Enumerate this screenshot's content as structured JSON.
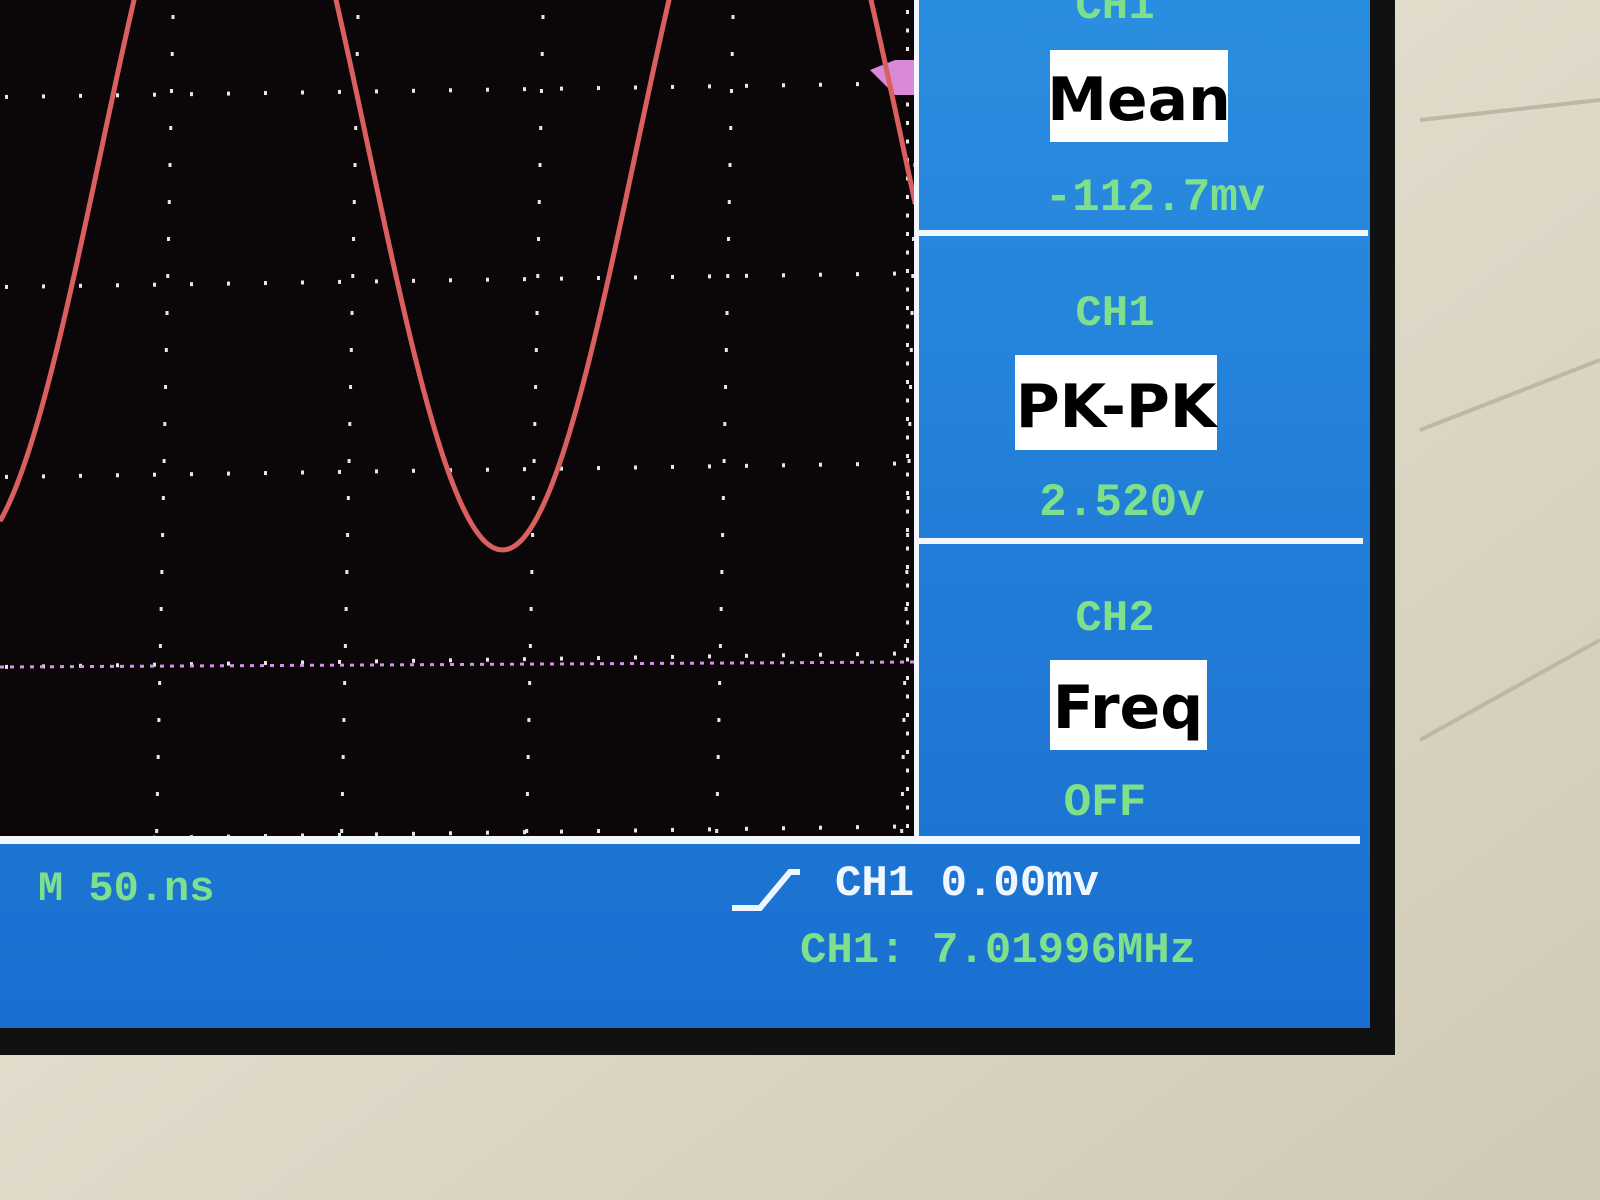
{
  "measurements": [
    {
      "channel": "CH1",
      "type": "Mean",
      "value": "-112.7mv"
    },
    {
      "channel": "CH1",
      "type": "PK-PK",
      "value": "2.520v"
    },
    {
      "channel": "CH2",
      "type": "Freq",
      "value": "OFF"
    }
  ],
  "status": {
    "timebase": "M 50.ns",
    "trigger": "CH1 0.00mv",
    "frequency": "CH1: 7.01996MHz"
  }
}
